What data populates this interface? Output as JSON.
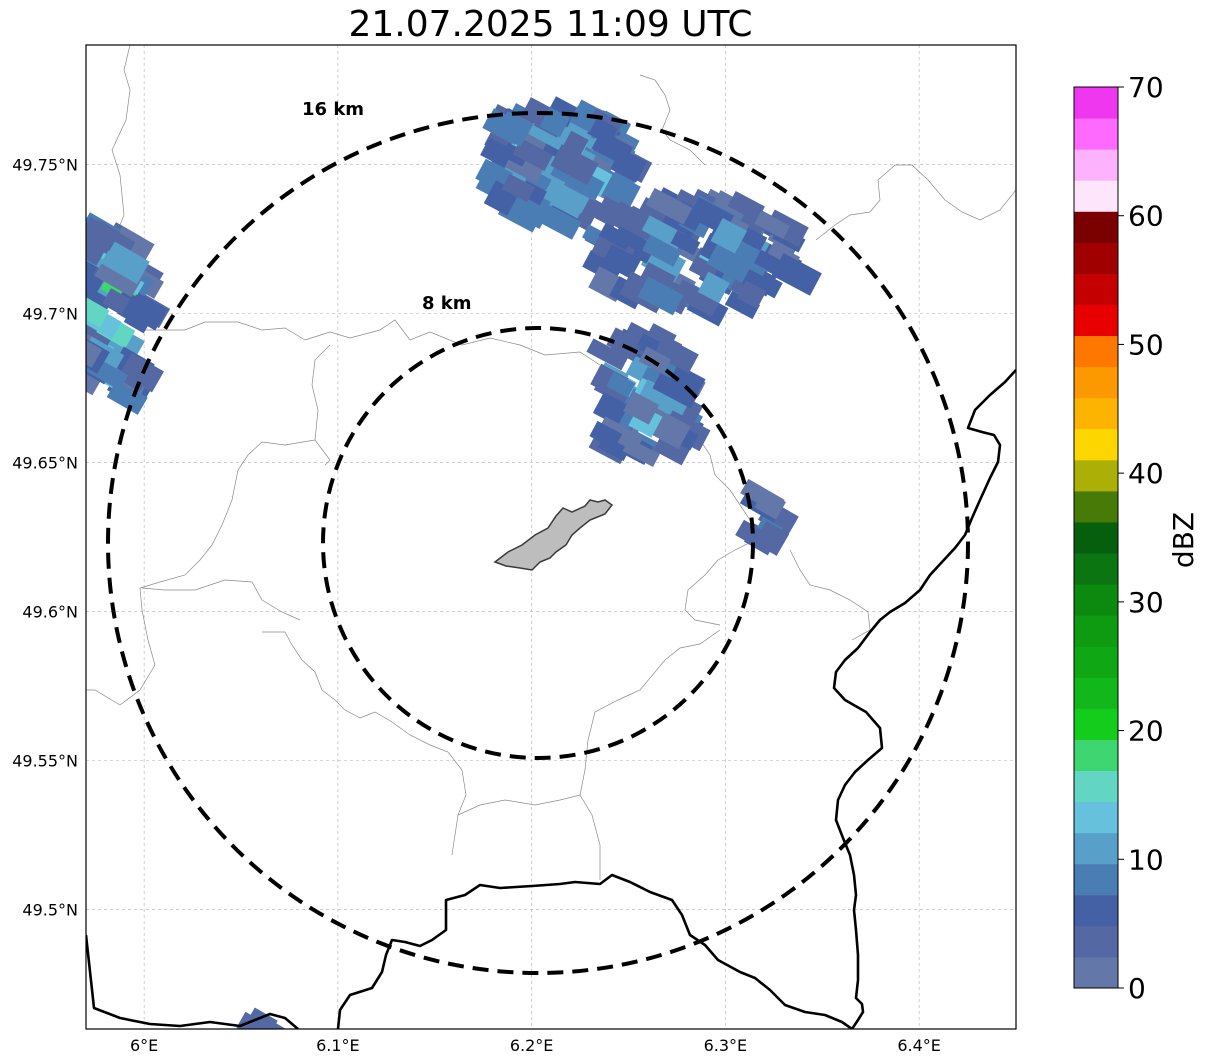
{
  "title": "21.07.2025 11:09 UTC",
  "map": {
    "lon_range": [
      5.97,
      6.45
    ],
    "lat_range": [
      49.46,
      49.79
    ],
    "center": {
      "lon": 6.202,
      "lat": 49.623
    },
    "lon_ticks": [
      {
        "value": 6.0,
        "label": "6°E"
      },
      {
        "value": 6.1,
        "label": "6.1°E"
      },
      {
        "value": 6.2,
        "label": "6.2°E"
      },
      {
        "value": 6.3,
        "label": "6.3°E"
      },
      {
        "value": 6.4,
        "label": "6.4°E"
      }
    ],
    "lat_ticks": [
      {
        "value": 49.5,
        "label": "49.5°N"
      },
      {
        "value": 49.55,
        "label": "49.55°N"
      },
      {
        "value": 49.6,
        "label": "49.6°N"
      },
      {
        "value": 49.65,
        "label": "49.65°N"
      },
      {
        "value": 49.7,
        "label": "49.7°N"
      },
      {
        "value": 49.75,
        "label": "49.75°N"
      }
    ],
    "range_rings": [
      {
        "radius_km": 8,
        "label": "8 km"
      },
      {
        "radius_km": 16,
        "label": "16 km"
      }
    ],
    "grid": true
  },
  "colorbar": {
    "label": "dBZ",
    "min": 0,
    "max": 70,
    "tick_labels": [
      "0",
      "10",
      "20",
      "30",
      "40",
      "50",
      "60",
      "70"
    ],
    "colors": [
      "#6477a9",
      "#5469a3",
      "#4561a5",
      "#4b7db5",
      "#58a0c9",
      "#65c1dc",
      "#62d6c3",
      "#3dd671",
      "#13cc1b",
      "#12b81b",
      "#0fa814",
      "#0e9a11",
      "#0b8a0f",
      "#0a7511",
      "#065f0c",
      "#477a06",
      "#acb006",
      "#fdd600",
      "#fcb400",
      "#fd9900",
      "#fe7800",
      "#e80000",
      "#c40000",
      "#a00000",
      "#7b0000",
      "#fde6fc",
      "#fdb2fd",
      "#fd6afd",
      "#f037f0"
    ]
  }
}
